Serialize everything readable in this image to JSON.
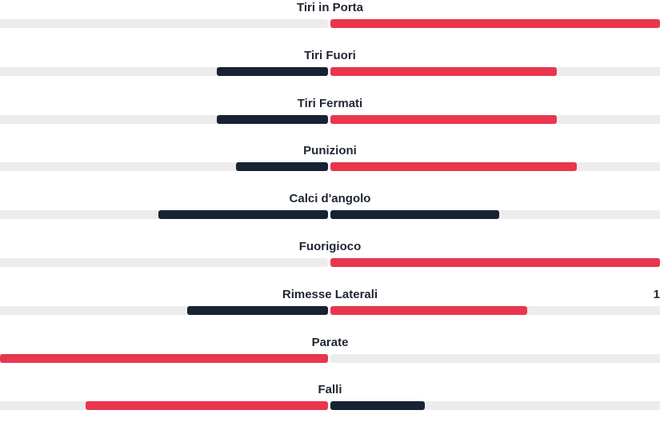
{
  "colors": {
    "red": "#e8364d",
    "dark": "#172233",
    "track": "#ececec"
  },
  "stats": [
    {
      "label": "Tiri in Porta",
      "left": {
        "fraction": 0.0,
        "color": "dark"
      },
      "right": {
        "fraction": 1.0,
        "color": "red"
      }
    },
    {
      "label": "Tiri Fuori",
      "left": {
        "fraction": 0.34,
        "color": "dark"
      },
      "right": {
        "fraction": 0.687,
        "color": "red"
      }
    },
    {
      "label": "Tiri Fermati",
      "left": {
        "fraction": 0.34,
        "color": "dark"
      },
      "right": {
        "fraction": 0.687,
        "color": "red"
      }
    },
    {
      "label": "Punizioni",
      "left": {
        "fraction": 0.28,
        "color": "dark"
      },
      "right": {
        "fraction": 0.748,
        "color": "red"
      }
    },
    {
      "label": "Calci d'angolo",
      "left": {
        "fraction": 0.517,
        "color": "dark"
      },
      "right": {
        "fraction": 0.512,
        "color": "dark"
      }
    },
    {
      "label": "Fuorigioco",
      "left": {
        "fraction": 0.0,
        "color": "dark"
      },
      "right": {
        "fraction": 1.0,
        "color": "red"
      }
    },
    {
      "label": "Rimesse Laterali",
      "left": {
        "fraction": 0.43,
        "color": "dark"
      },
      "right": {
        "fraction": 0.597,
        "color": "red"
      },
      "edge_value": "1"
    },
    {
      "label": "Parate",
      "left": {
        "fraction": 1.0,
        "color": "red"
      },
      "right": {
        "fraction": 0.0,
        "color": "dark"
      }
    },
    {
      "label": "Falli",
      "left": {
        "fraction": 0.74,
        "color": "red"
      },
      "right": {
        "fraction": 0.286,
        "color": "dark"
      }
    }
  ]
}
